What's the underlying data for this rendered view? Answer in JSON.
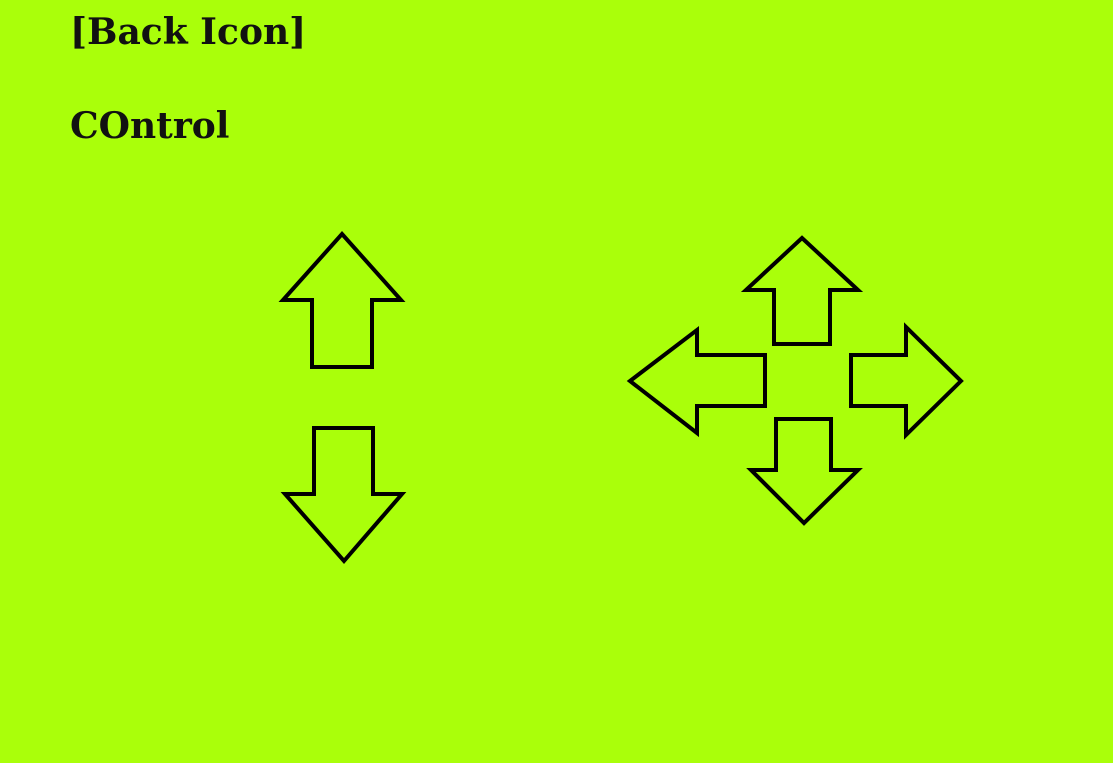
{
  "header": {
    "back_label": "[Back Icon]",
    "title": "COntrol"
  },
  "controls": {
    "vertical_pad": [
      "up-arrow-icon",
      "down-arrow-icon"
    ],
    "direction_pad": [
      "up-arrow-icon",
      "left-arrow-icon",
      "right-arrow-icon",
      "down-arrow-icon"
    ]
  },
  "colors": {
    "background": "#aaff0a",
    "text": "#111111",
    "arrow_outline": "#000000"
  }
}
